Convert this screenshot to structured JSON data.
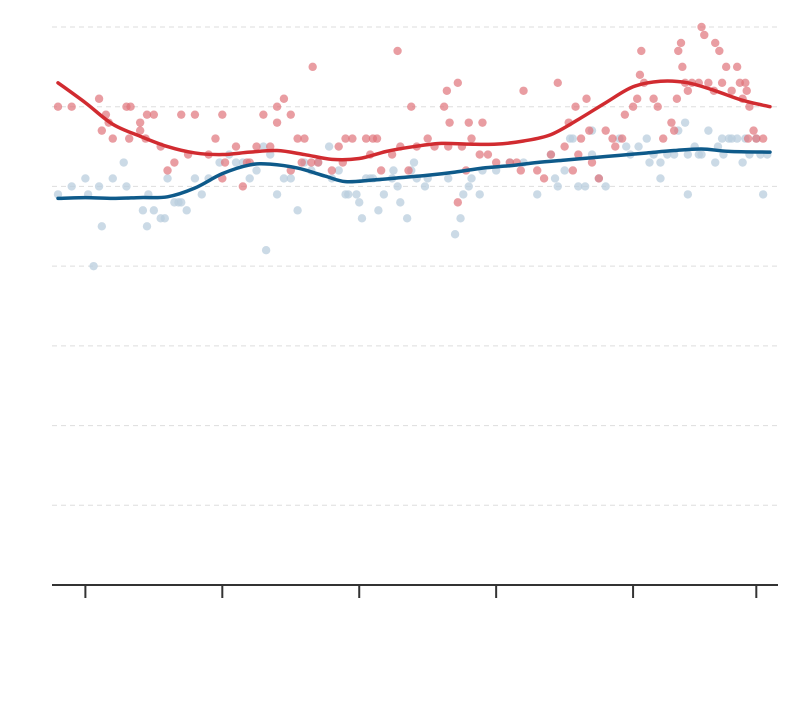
{
  "chart_data": {
    "type": "scatter",
    "title": "",
    "xlabel": "",
    "ylabel": "",
    "xlim": [
      0,
      52
    ],
    "ylim": [
      0,
      70
    ],
    "grid": true,
    "y_gridlines": [
      10,
      20,
      30,
      40,
      50,
      60,
      70
    ],
    "x_ticks": [
      2,
      12,
      22,
      32,
      42,
      51
    ],
    "colors": {
      "red_points": "#e0737a",
      "blue_points": "#b9cedd",
      "red_line": "#d12b30",
      "blue_line": "#0e5a8a"
    },
    "series": [
      {
        "key": "red",
        "points": [
          [
            0,
            60
          ],
          [
            1,
            60
          ],
          [
            3,
            61
          ],
          [
            3.5,
            59
          ],
          [
            3.7,
            58
          ],
          [
            3.2,
            57
          ],
          [
            4,
            56
          ],
          [
            5,
            60
          ],
          [
            5.3,
            60
          ],
          [
            5.2,
            56
          ],
          [
            6,
            57
          ],
          [
            6,
            58
          ],
          [
            6.4,
            56
          ],
          [
            6.5,
            59
          ],
          [
            7,
            59
          ],
          [
            7.5,
            55
          ],
          [
            8,
            52
          ],
          [
            8.5,
            53
          ],
          [
            9,
            59
          ],
          [
            10,
            59
          ],
          [
            9.5,
            54
          ],
          [
            11,
            54
          ],
          [
            11.5,
            56
          ],
          [
            12,
            51
          ],
          [
            12.2,
            53
          ],
          [
            12,
            59
          ],
          [
            13,
            55
          ],
          [
            13.5,
            50
          ],
          [
            13.8,
            53
          ],
          [
            14,
            53
          ],
          [
            14.5,
            55
          ],
          [
            15,
            59
          ],
          [
            15.5,
            55
          ],
          [
            16,
            58
          ],
          [
            16.5,
            61
          ],
          [
            16,
            60
          ],
          [
            17,
            52
          ],
          [
            17.5,
            56
          ],
          [
            17.8,
            53
          ],
          [
            17,
            59
          ],
          [
            18,
            56
          ],
          [
            18.5,
            53
          ],
          [
            19,
            53
          ],
          [
            18.6,
            65
          ],
          [
            20,
            52
          ],
          [
            20.5,
            55
          ],
          [
            21,
            56
          ],
          [
            21.5,
            56
          ],
          [
            20.8,
            53
          ],
          [
            22.5,
            56
          ],
          [
            23,
            56
          ],
          [
            23.3,
            56
          ],
          [
            22.8,
            54
          ],
          [
            23.6,
            52
          ],
          [
            24.4,
            54
          ],
          [
            24.8,
            67
          ],
          [
            25,
            55
          ],
          [
            25.6,
            52
          ],
          [
            25.8,
            60
          ],
          [
            26.2,
            55
          ],
          [
            27.5,
            55
          ],
          [
            27,
            56
          ],
          [
            28.5,
            55
          ],
          [
            28.2,
            60
          ],
          [
            28.4,
            62
          ],
          [
            28.6,
            58
          ],
          [
            29.2,
            63
          ],
          [
            29.5,
            55
          ],
          [
            30,
            58
          ],
          [
            30.2,
            56
          ],
          [
            29.8,
            52
          ],
          [
            29.2,
            48
          ],
          [
            30.8,
            54
          ],
          [
            31,
            58
          ],
          [
            31.4,
            54
          ],
          [
            32,
            53
          ],
          [
            33,
            53
          ],
          [
            33.5,
            53
          ],
          [
            33.8,
            52
          ],
          [
            34,
            62
          ],
          [
            35,
            52
          ],
          [
            35.5,
            51
          ],
          [
            36,
            54
          ],
          [
            36.5,
            63
          ],
          [
            37,
            55
          ],
          [
            37.3,
            58
          ],
          [
            37.6,
            52
          ],
          [
            37.8,
            60
          ],
          [
            38,
            54
          ],
          [
            38.2,
            56
          ],
          [
            38.6,
            61
          ],
          [
            38.8,
            57
          ],
          [
            39,
            53
          ],
          [
            39.5,
            51
          ],
          [
            40,
            57
          ],
          [
            40.5,
            56
          ],
          [
            40.7,
            55
          ],
          [
            41.2,
            56
          ],
          [
            41.4,
            59
          ],
          [
            42,
            60
          ],
          [
            42.3,
            61
          ],
          [
            42.5,
            64
          ],
          [
            42.6,
            67
          ],
          [
            42.8,
            63
          ],
          [
            43.5,
            61
          ],
          [
            43.8,
            60
          ],
          [
            44.2,
            56
          ],
          [
            44.8,
            58
          ],
          [
            45,
            57
          ],
          [
            45.2,
            61
          ],
          [
            45.3,
            67
          ],
          [
            45.5,
            68
          ],
          [
            45.6,
            65
          ],
          [
            46,
            62
          ],
          [
            45.8,
            63
          ],
          [
            46.3,
            63
          ],
          [
            46.8,
            63
          ],
          [
            47,
            70
          ],
          [
            47.2,
            69
          ],
          [
            47.5,
            63
          ],
          [
            47.9,
            62
          ],
          [
            48,
            68
          ],
          [
            48.3,
            67
          ],
          [
            48.5,
            63
          ],
          [
            48.8,
            65
          ],
          [
            49.2,
            62
          ],
          [
            49.6,
            65
          ],
          [
            49.8,
            63
          ],
          [
            50,
            61
          ],
          [
            50.2,
            63
          ],
          [
            50.3,
            62
          ],
          [
            50.5,
            60
          ],
          [
            50.8,
            57
          ],
          [
            50.4,
            56
          ],
          [
            51,
            56
          ],
          [
            51.5,
            56
          ]
        ]
      },
      {
        "key": "blue",
        "points": [
          [
            0,
            49
          ],
          [
            1,
            50
          ],
          [
            2,
            51
          ],
          [
            2.2,
            49
          ],
          [
            2.6,
            40
          ],
          [
            3,
            50
          ],
          [
            3.2,
            45
          ],
          [
            4,
            51
          ],
          [
            4.8,
            53
          ],
          [
            5,
            50
          ],
          [
            6.2,
            47
          ],
          [
            6.5,
            45
          ],
          [
            6.6,
            49
          ],
          [
            7,
            47
          ],
          [
            7.5,
            46
          ],
          [
            7.8,
            46
          ],
          [
            8,
            51
          ],
          [
            8.5,
            48
          ],
          [
            8.8,
            48
          ],
          [
            9,
            48
          ],
          [
            9.4,
            47
          ],
          [
            10,
            51
          ],
          [
            10.5,
            49
          ],
          [
            11,
            51
          ],
          [
            11.8,
            53
          ],
          [
            12.5,
            54
          ],
          [
            13,
            53
          ],
          [
            13.5,
            53
          ],
          [
            14,
            51
          ],
          [
            14.5,
            52
          ],
          [
            15,
            55
          ],
          [
            15.2,
            42
          ],
          [
            15.5,
            54
          ],
          [
            16,
            49
          ],
          [
            16.5,
            51
          ],
          [
            17,
            51
          ],
          [
            17.5,
            47
          ],
          [
            18,
            53
          ],
          [
            18.5,
            52
          ],
          [
            19,
            53
          ],
          [
            19.8,
            55
          ],
          [
            20,
            51
          ],
          [
            20.5,
            52
          ],
          [
            21,
            49
          ],
          [
            21.2,
            49
          ],
          [
            21.8,
            49
          ],
          [
            22,
            48
          ],
          [
            22.2,
            46
          ],
          [
            22.5,
            51
          ],
          [
            22.8,
            51
          ],
          [
            23,
            51
          ],
          [
            23.4,
            47
          ],
          [
            23.8,
            49
          ],
          [
            24.4,
            51
          ],
          [
            24.5,
            52
          ],
          [
            24.8,
            50
          ],
          [
            25,
            48
          ],
          [
            25.5,
            46
          ],
          [
            25.8,
            52
          ],
          [
            26,
            53
          ],
          [
            26.2,
            51
          ],
          [
            27,
            51
          ],
          [
            26.8,
            50
          ],
          [
            28.5,
            51
          ],
          [
            29,
            44
          ],
          [
            29.4,
            46
          ],
          [
            29.6,
            49
          ],
          [
            30,
            50
          ],
          [
            30.2,
            51
          ],
          [
            30.8,
            49
          ],
          [
            31,
            52
          ],
          [
            32,
            52
          ],
          [
            33,
            53
          ],
          [
            34,
            53
          ],
          [
            35,
            49
          ],
          [
            36,
            54
          ],
          [
            36.3,
            51
          ],
          [
            36.5,
            50
          ],
          [
            37,
            52
          ],
          [
            37.4,
            56
          ],
          [
            37.6,
            56
          ],
          [
            38,
            50
          ],
          [
            38.5,
            50
          ],
          [
            39,
            54
          ],
          [
            39,
            57
          ],
          [
            39.5,
            51
          ],
          [
            40,
            50
          ],
          [
            41,
            56
          ],
          [
            41.5,
            55
          ],
          [
            41.8,
            54
          ],
          [
            42.4,
            55
          ],
          [
            43,
            56
          ],
          [
            43.2,
            53
          ],
          [
            43.5,
            54
          ],
          [
            44,
            53
          ],
          [
            44,
            51
          ],
          [
            44.5,
            54
          ],
          [
            45,
            54
          ],
          [
            45.3,
            57
          ],
          [
            45.8,
            58
          ],
          [
            46,
            54
          ],
          [
            46,
            49
          ],
          [
            46.5,
            55
          ],
          [
            46.8,
            54
          ],
          [
            47,
            54
          ],
          [
            47.5,
            57
          ],
          [
            48,
            53
          ],
          [
            48.2,
            55
          ],
          [
            48.5,
            56
          ],
          [
            48.6,
            54
          ],
          [
            49,
            56
          ],
          [
            49.2,
            56
          ],
          [
            49.6,
            56
          ],
          [
            50,
            53
          ],
          [
            50.2,
            56
          ],
          [
            50.5,
            54
          ],
          [
            51,
            56
          ],
          [
            51.3,
            54
          ],
          [
            51.5,
            49
          ],
          [
            51.8,
            54
          ]
        ]
      }
    ],
    "trend_lines": [
      {
        "key": "red",
        "points": [
          [
            0,
            63
          ],
          [
            2,
            60.5
          ],
          [
            4,
            57.8
          ],
          [
            6,
            56.3
          ],
          [
            8,
            55
          ],
          [
            10,
            54.2
          ],
          [
            12,
            54
          ],
          [
            14,
            54.3
          ],
          [
            16,
            54.5
          ],
          [
            18,
            54
          ],
          [
            20,
            53.4
          ],
          [
            22,
            53.5
          ],
          [
            24,
            54.4
          ],
          [
            26,
            55
          ],
          [
            28,
            55.4
          ],
          [
            30,
            55.3
          ],
          [
            32,
            55.3
          ],
          [
            34,
            55.7
          ],
          [
            36,
            56.5
          ],
          [
            38,
            58.4
          ],
          [
            40,
            60.5
          ],
          [
            42,
            62.5
          ],
          [
            44,
            63.2
          ],
          [
            46,
            63
          ],
          [
            48,
            62
          ],
          [
            50,
            60.8
          ],
          [
            52,
            60
          ]
        ]
      },
      {
        "key": "blue",
        "points": [
          [
            0,
            48.5
          ],
          [
            2,
            48.6
          ],
          [
            4,
            48.5
          ],
          [
            6,
            48.6
          ],
          [
            8,
            48.7
          ],
          [
            10,
            49.8
          ],
          [
            12,
            51.6
          ],
          [
            14,
            52.7
          ],
          [
            15.5,
            52.8
          ],
          [
            17.5,
            52.3
          ],
          [
            19.5,
            51.3
          ],
          [
            21,
            50.6
          ],
          [
            23,
            50.8
          ],
          [
            25,
            51.1
          ],
          [
            27,
            51.4
          ],
          [
            29,
            51.8
          ],
          [
            31,
            52.3
          ],
          [
            33,
            52.6
          ],
          [
            35,
            53
          ],
          [
            37,
            53.3
          ],
          [
            39,
            53.6
          ],
          [
            41,
            53.9
          ],
          [
            43,
            54.2
          ],
          [
            45,
            54.5
          ],
          [
            47,
            54.7
          ],
          [
            49,
            54.4
          ],
          [
            52,
            54.3
          ]
        ]
      }
    ]
  }
}
